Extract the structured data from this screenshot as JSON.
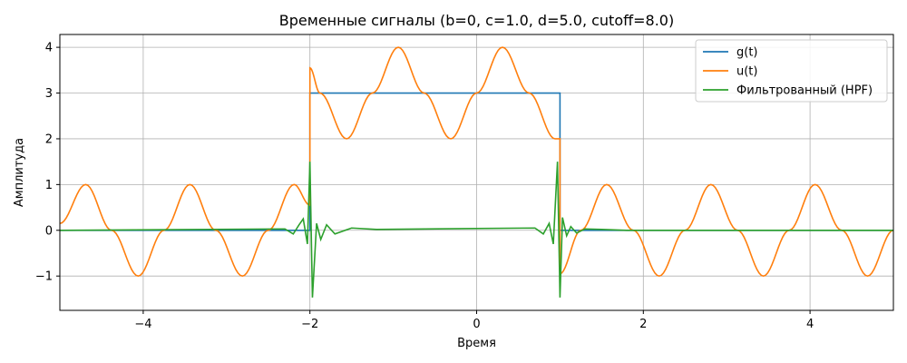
{
  "chart_data": {
    "type": "line",
    "title": "Временные сигналы (b=0, c=1.0, d=5.0, cutoff=8.0)",
    "xlabel": "Время",
    "ylabel": "Амплитуда",
    "xlim": [
      -5,
      5
    ],
    "ylim": [
      -1.75,
      4.28
    ],
    "xticks": [
      -4,
      -2,
      0,
      2,
      4
    ],
    "yticks": [
      -1,
      0,
      1,
      2,
      3,
      4
    ],
    "xtick_labels": [
      "−4",
      "−2",
      "0",
      "2",
      "4"
    ],
    "ytick_labels": [
      "−1",
      "0",
      "1",
      "2",
      "3",
      "4"
    ],
    "grid": true,
    "legend_position": "top-right",
    "series": [
      {
        "name": "g(t)",
        "color": "#1f77b4",
        "x": [
          -5,
          -2,
          -2,
          1,
          1,
          5
        ],
        "y": [
          0,
          0,
          3,
          3,
          0,
          0
        ]
      },
      {
        "name": "u(t)",
        "color": "#ff7f0e",
        "x": [
          -5,
          -4.69,
          -4.38,
          -4.06,
          -3.75,
          -3.44,
          -3.13,
          -2.81,
          -2.5,
          -2.19,
          -2.0,
          -2.0,
          -1.88,
          -1.56,
          -1.25,
          -0.94,
          -0.63,
          -0.31,
          0.0,
          0.31,
          0.63,
          0.94,
          1.0,
          1.0,
          1.25,
          1.56,
          1.88,
          2.19,
          2.5,
          2.81,
          3.13,
          3.44,
          3.75,
          4.06,
          4.38,
          4.69,
          5.0
        ],
        "y": [
          0.15,
          1.0,
          0.0,
          -1.0,
          0.0,
          1.0,
          0.0,
          -1.0,
          0.0,
          1.0,
          0.55,
          3.55,
          3.0,
          2.0,
          3.0,
          4.0,
          3.0,
          2.0,
          3.0,
          4.0,
          3.0,
          2.0,
          2.0,
          -0.95,
          0.0,
          1.0,
          0.0,
          -1.0,
          0.0,
          1.0,
          0.0,
          -1.0,
          0.0,
          1.0,
          0.0,
          -1.0,
          0.0
        ]
      },
      {
        "name": "Фильтрованный (HPF)",
        "color": "#2ca02c",
        "x": [
          -5,
          -2.3,
          -2.2,
          -2.13,
          -2.08,
          -2.03,
          -2.0,
          -1.97,
          -1.92,
          -1.87,
          -1.8,
          -1.7,
          -1.5,
          -1.2,
          0.7,
          0.8,
          0.87,
          0.92,
          0.97,
          1.0,
          1.03,
          1.08,
          1.13,
          1.2,
          1.3,
          1.5,
          1.8,
          5
        ],
        "y": [
          0,
          0.03,
          -0.08,
          0.12,
          0.25,
          -0.3,
          1.5,
          -1.47,
          0.15,
          -0.2,
          0.12,
          -0.08,
          0.05,
          0.02,
          0.05,
          -0.08,
          0.15,
          -0.3,
          1.5,
          -1.47,
          0.28,
          -0.12,
          0.08,
          -0.06,
          0.03,
          0.02,
          0.0,
          0
        ]
      }
    ]
  }
}
